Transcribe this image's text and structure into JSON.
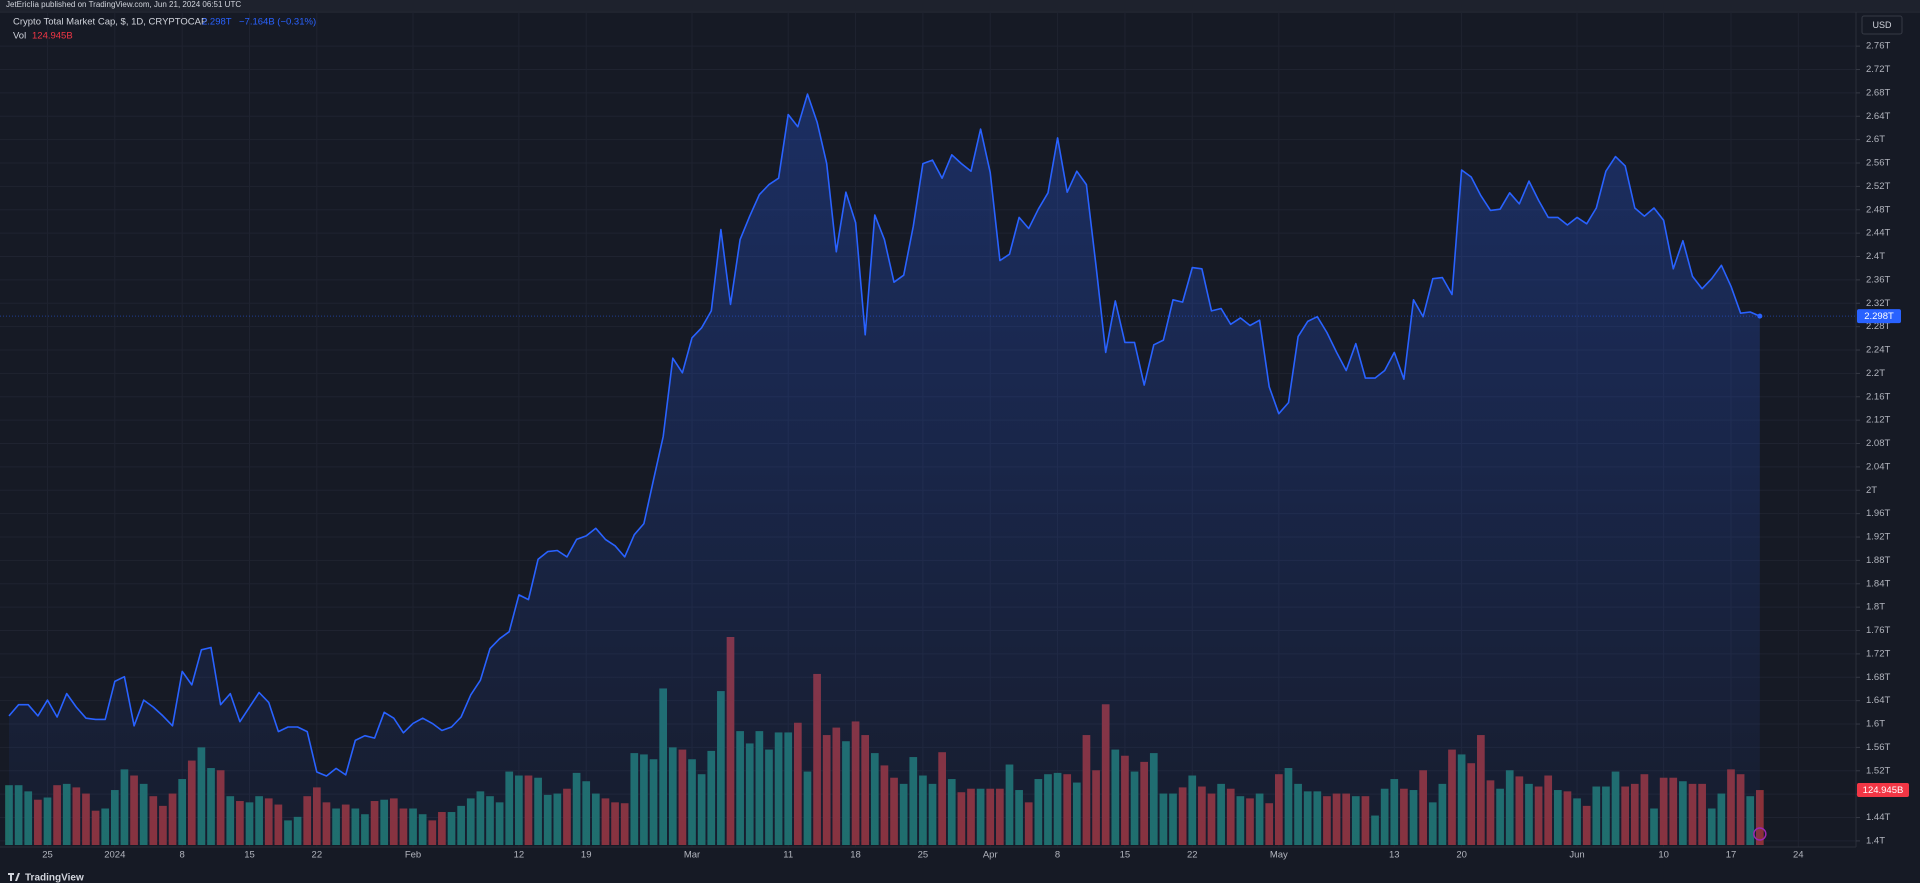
{
  "publisher": "JetEricIia published on TradingView.com, Jun 21, 2024 06:51 UTC",
  "footer": "TradingView",
  "chart_data": {
    "type": "area",
    "currency": "USD",
    "legend": {
      "price": "2.298T",
      "change": "−7.164B (−0.31%)",
      "volume": "124.945B"
    },
    "categories": [
      null,
      null,
      null,
      null,
      "25",
      null,
      null,
      null,
      null,
      null,
      null,
      "2024",
      null,
      null,
      null,
      null,
      null,
      null,
      "8",
      null,
      null,
      null,
      null,
      null,
      null,
      "15",
      null,
      null,
      null,
      null,
      null,
      null,
      "22",
      null,
      null,
      null,
      null,
      null,
      null,
      null,
      null,
      null,
      "Feb",
      null,
      null,
      null,
      null,
      null,
      null,
      null,
      null,
      null,
      null,
      "12",
      null,
      null,
      null,
      null,
      null,
      null,
      "19",
      null,
      null,
      null,
      null,
      null,
      null,
      null,
      null,
      null,
      null,
      "Mar",
      null,
      null,
      null,
      null,
      null,
      null,
      null,
      null,
      null,
      "11",
      null,
      null,
      null,
      null,
      null,
      null,
      "18",
      null,
      null,
      null,
      null,
      null,
      null,
      "25",
      null,
      null,
      null,
      null,
      null,
      null,
      "Apr",
      null,
      null,
      null,
      null,
      null,
      null,
      "8",
      null,
      null,
      null,
      null,
      null,
      null,
      "15",
      null,
      null,
      null,
      null,
      null,
      null,
      "22",
      null,
      null,
      null,
      null,
      null,
      null,
      null,
      null,
      "May",
      null,
      null,
      null,
      null,
      null,
      null,
      null,
      null,
      null,
      null,
      null,
      "13",
      null,
      null,
      null,
      null,
      null,
      null,
      "20",
      null,
      null,
      null,
      null,
      null,
      null,
      null,
      null,
      null,
      null,
      null,
      "Jun",
      null,
      null,
      null,
      null,
      null,
      null,
      null,
      null,
      "10",
      null,
      null,
      null,
      null,
      null,
      null,
      "17",
      null,
      null,
      null,
      null,
      null,
      null,
      "24"
    ],
    "series": [
      {
        "name": "Crypto Total Market Cap, $, 1D, CRYPTOCAP",
        "color": "#2962ff",
        "values": [
          1.614,
          1.633,
          1.633,
          1.614,
          1.641,
          1.612,
          1.652,
          1.629,
          1.61,
          1.608,
          1.608,
          1.673,
          1.681,
          1.597,
          1.641,
          1.629,
          1.614,
          1.597,
          1.69,
          1.667,
          1.727,
          1.731,
          1.633,
          1.652,
          1.604,
          1.629,
          1.654,
          1.637,
          1.587,
          1.595,
          1.595,
          1.587,
          1.518,
          1.511,
          1.524,
          1.513,
          1.572,
          1.58,
          1.576,
          1.62,
          1.61,
          1.585,
          1.601,
          1.61,
          1.601,
          1.589,
          1.595,
          1.612,
          1.65,
          1.675,
          1.729,
          1.746,
          1.758,
          1.821,
          1.813,
          1.882,
          1.895,
          1.897,
          1.886,
          1.916,
          1.922,
          1.935,
          1.916,
          1.905,
          1.886,
          1.924,
          1.943,
          2.018,
          2.092,
          2.226,
          2.201,
          2.261,
          2.278,
          2.307,
          2.446,
          2.318,
          2.429,
          2.469,
          2.506,
          2.523,
          2.534,
          2.643,
          2.622,
          2.678,
          2.63,
          2.559,
          2.408,
          2.51,
          2.458,
          2.266,
          2.471,
          2.429,
          2.356,
          2.368,
          2.452,
          2.559,
          2.565,
          2.534,
          2.574,
          2.559,
          2.546,
          2.618,
          2.544,
          2.393,
          2.404,
          2.467,
          2.448,
          2.481,
          2.509,
          2.603,
          2.51,
          2.546,
          2.523,
          2.383,
          2.236,
          2.324,
          2.253,
          2.253,
          2.18,
          2.249,
          2.257,
          2.326,
          2.322,
          2.381,
          2.379,
          2.307,
          2.311,
          2.284,
          2.295,
          2.282,
          2.291,
          2.177,
          2.131,
          2.15,
          2.263,
          2.289,
          2.297,
          2.27,
          2.236,
          2.205,
          2.251,
          2.192,
          2.192,
          2.205,
          2.236,
          2.19,
          2.326,
          2.297,
          2.362,
          2.364,
          2.335,
          2.548,
          2.536,
          2.504,
          2.479,
          2.481,
          2.509,
          2.49,
          2.529,
          2.496,
          2.467,
          2.467,
          2.454,
          2.467,
          2.456,
          2.483,
          2.546,
          2.571,
          2.555,
          2.483,
          2.469,
          2.483,
          2.462,
          2.379,
          2.427,
          2.366,
          2.345,
          2.362,
          2.385,
          2.349,
          2.303,
          2.305,
          2.298,
          null,
          null,
          null,
          null
        ]
      },
      {
        "name": "Vol",
        "up_color": "#1f6e68",
        "down_color": "#8b3138",
        "values": [
          136,
          136,
          122,
          103,
          108,
          136,
          139,
          131,
          117,
          78,
          83,
          125,
          172,
          158,
          139,
          111,
          89,
          117,
          150,
          192,
          222,
          175,
          170,
          111,
          100,
          97,
          111,
          106,
          92,
          56,
          64,
          111,
          131,
          97,
          83,
          92,
          83,
          70,
          100,
          103,
          106,
          83,
          83,
          70,
          56,
          75,
          75,
          89,
          106,
          122,
          111,
          97,
          167,
          158,
          158,
          153,
          114,
          117,
          128,
          164,
          145,
          117,
          106,
          97,
          95,
          209,
          206,
          195,
          356,
          222,
          217,
          195,
          161,
          214,
          350,
          473,
          259,
          231,
          259,
          217,
          256,
          256,
          278,
          167,
          389,
          250,
          267,
          236,
          281,
          250,
          209,
          181,
          153,
          139,
          200,
          158,
          139,
          211,
          150,
          120,
          128,
          128,
          128,
          128,
          183,
          125,
          97,
          150,
          161,
          164,
          161,
          142,
          250,
          170,
          320,
          217,
          203,
          167,
          189,
          209,
          117,
          117,
          131,
          158,
          133,
          117,
          139,
          128,
          111,
          106,
          117,
          95,
          161,
          175,
          139,
          122,
          122,
          111,
          117,
          117,
          111,
          111,
          67,
          128,
          150,
          128,
          125,
          170,
          97,
          139,
          217,
          206,
          186,
          250,
          147,
          128,
          170,
          156,
          139,
          133,
          158,
          125,
          122,
          106,
          89,
          133,
          133,
          167,
          133,
          139,
          161,
          83,
          153,
          153,
          145,
          139,
          139,
          83,
          117,
          172,
          161,
          111,
          124.945,
          null,
          null,
          null,
          null
        ]
      }
    ],
    "ylim": [
      1.393,
      2.815
    ],
    "yticks": [
      {
        "value": 1.4,
        "label": "1.4T"
      },
      {
        "value": 1.44,
        "label": "1.44T"
      },
      {
        "value": 1.48,
        "label": "1.48T"
      },
      {
        "value": 1.52,
        "label": "1.52T"
      },
      {
        "value": 1.56,
        "label": "1.56T"
      },
      {
        "value": 1.6,
        "label": "1.6T"
      },
      {
        "value": 1.64,
        "label": "1.64T"
      },
      {
        "value": 1.68,
        "label": "1.68T"
      },
      {
        "value": 1.72,
        "label": "1.72T"
      },
      {
        "value": 1.76,
        "label": "1.76T"
      },
      {
        "value": 1.8,
        "label": "1.8T"
      },
      {
        "value": 1.84,
        "label": "1.84T"
      },
      {
        "value": 1.88,
        "label": "1.88T"
      },
      {
        "value": 1.92,
        "label": "1.92T"
      },
      {
        "value": 1.96,
        "label": "1.96T"
      },
      {
        "value": 2,
        "label": "2T"
      },
      {
        "value": 2.04,
        "label": "2.04T"
      },
      {
        "value": 2.08,
        "label": "2.08T"
      },
      {
        "value": 2.12,
        "label": "2.12T"
      },
      {
        "value": 2.16,
        "label": "2.16T"
      },
      {
        "value": 2.2,
        "label": "2.2T"
      },
      {
        "value": 2.24,
        "label": "2.24T"
      },
      {
        "value": 2.28,
        "label": "2.28T"
      },
      {
        "value": 2.32,
        "label": "2.32T"
      },
      {
        "value": 2.36,
        "label": "2.36T"
      },
      {
        "value": 2.4,
        "label": "2.4T"
      },
      {
        "value": 2.44,
        "label": "2.44T"
      },
      {
        "value": 2.48,
        "label": "2.48T"
      },
      {
        "value": 2.52,
        "label": "2.52T"
      },
      {
        "value": 2.56,
        "label": "2.56T"
      },
      {
        "value": 2.6,
        "label": "2.6T"
      },
      {
        "value": 2.64,
        "label": "2.64T"
      },
      {
        "value": 2.68,
        "label": "2.68T"
      },
      {
        "value": 2.72,
        "label": "2.72T"
      },
      {
        "value": 2.76,
        "label": "2.76T"
      }
    ],
    "grid": true
  }
}
